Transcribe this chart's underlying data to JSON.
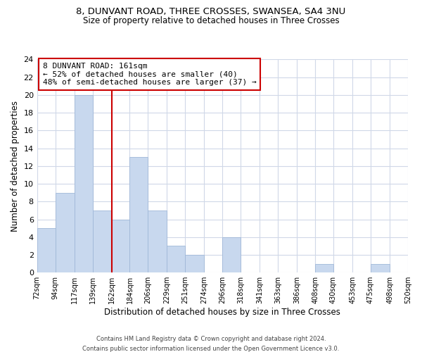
{
  "title": "8, DUNVANT ROAD, THREE CROSSES, SWANSEA, SA4 3NU",
  "subtitle": "Size of property relative to detached houses in Three Crosses",
  "xlabel": "Distribution of detached houses by size in Three Crosses",
  "ylabel": "Number of detached properties",
  "bin_edges": [
    72,
    94,
    117,
    139,
    162,
    184,
    206,
    229,
    251,
    274,
    296,
    318,
    341,
    363,
    386,
    408,
    430,
    453,
    475,
    498,
    520
  ],
  "bin_counts": [
    5,
    9,
    20,
    7,
    6,
    13,
    7,
    3,
    2,
    0,
    4,
    0,
    0,
    0,
    0,
    1,
    0,
    0,
    1,
    0
  ],
  "bar_color": "#c8d8ee",
  "bar_edge_color": "#a0b8d8",
  "vline_x": 162,
  "vline_color": "#cc0000",
  "annotation_line1": "8 DUNVANT ROAD: 161sqm",
  "annotation_line2": "← 52% of detached houses are smaller (40)",
  "annotation_line3": "48% of semi-detached houses are larger (37) →",
  "ylim": [
    0,
    24
  ],
  "yticks": [
    0,
    2,
    4,
    6,
    8,
    10,
    12,
    14,
    16,
    18,
    20,
    22,
    24
  ],
  "footer_line1": "Contains HM Land Registry data © Crown copyright and database right 2024.",
  "footer_line2": "Contains public sector information licensed under the Open Government Licence v3.0.",
  "bg_color": "#ffffff",
  "plot_bg_color": "#ffffff",
  "grid_color": "#d0d8e8",
  "title_fontsize": 9.5,
  "subtitle_fontsize": 8.5
}
